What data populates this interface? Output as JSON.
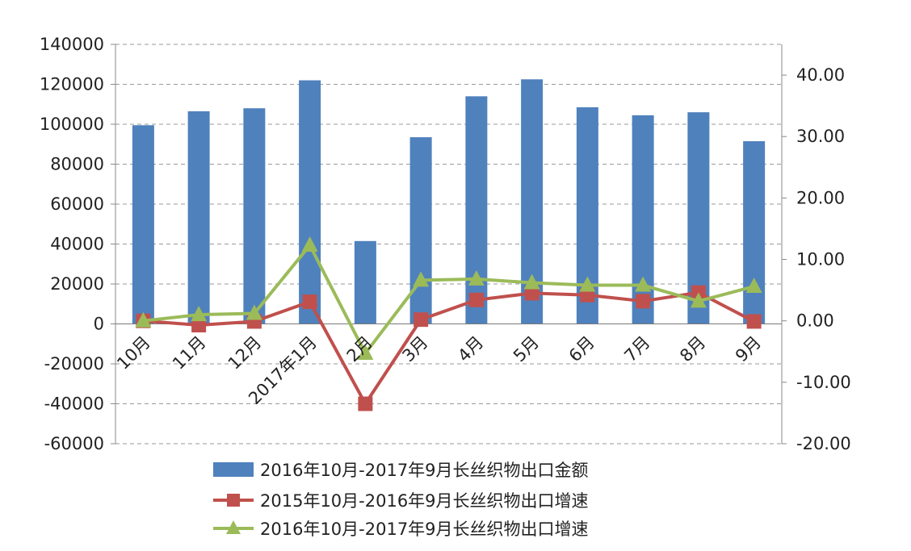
{
  "chart_data": {
    "type": "bar",
    "categories": [
      "10月",
      "11月",
      "12月",
      "2017年1月",
      "2月",
      "3月",
      "4月",
      "5月",
      "6月",
      "7月",
      "8月",
      "9月"
    ],
    "series": [
      {
        "name": "2016年10月-2017年9月长丝织物出口金额",
        "type": "bar",
        "axis": "left",
        "color": "#4F81BD",
        "values": [
          99500,
          106500,
          108000,
          122000,
          41500,
          93500,
          114000,
          122500,
          108500,
          104500,
          106000,
          91500
        ]
      },
      {
        "name": "2015年10月-2016年9月长丝织物出口增速",
        "type": "line",
        "axis": "right",
        "color": "#C0504D",
        "marker": "square",
        "values": [
          0.0,
          -0.7,
          -0.1,
          3.1,
          -13.5,
          0.2,
          3.4,
          4.5,
          4.2,
          3.2,
          4.6,
          -0.1
        ]
      },
      {
        "name": "2016年10月-2017年9月长丝织物出口增速",
        "type": "line",
        "axis": "right",
        "color": "#9BBB59",
        "marker": "triangle",
        "values": [
          0.0,
          1.0,
          1.2,
          12.3,
          -5.3,
          6.6,
          6.8,
          6.2,
          5.8,
          5.8,
          3.2,
          5.6
        ]
      }
    ],
    "y_left": {
      "range": [
        -60000,
        140000
      ],
      "ticks": [
        "-60000",
        "-40000",
        "-20000",
        "0",
        "20000",
        "40000",
        "60000",
        "80000",
        "100000",
        "120000",
        "140000"
      ]
    },
    "y_right": {
      "range": [
        -20,
        45
      ],
      "ticks": [
        "-20.00",
        "-10.00",
        "0.00",
        "10.00",
        "20.00",
        "30.00",
        "40.00"
      ]
    },
    "grid": "dashed horizontal",
    "legend_position": "bottom",
    "title": "",
    "xlabel": "",
    "ylabel": ""
  }
}
